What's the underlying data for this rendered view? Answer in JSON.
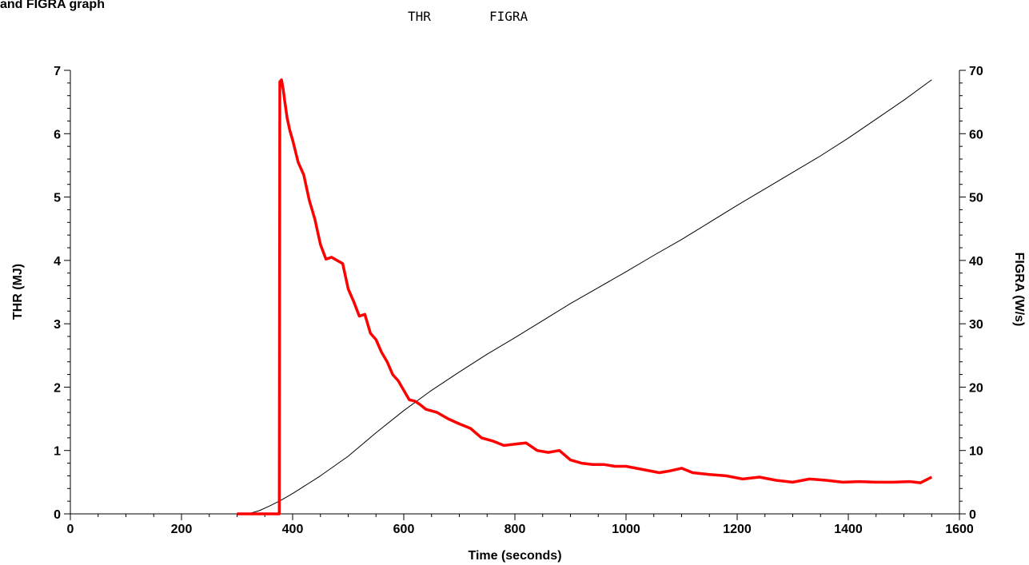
{
  "chart_data": {
    "type": "line",
    "title": "and FIGRA graph",
    "xlabel": "Time (seconds)",
    "ylabel_left": "THR (MJ)",
    "ylabel_right": "FIGRA (W/s)",
    "xlim": [
      0,
      1600
    ],
    "ylim_left": [
      0,
      7
    ],
    "ylim_right": [
      0,
      70
    ],
    "x_ticks": [
      "0",
      "200",
      "400",
      "600",
      "800",
      "1000",
      "1200",
      "1400",
      "1600"
    ],
    "y_left_ticks": [
      "0",
      "1",
      "2",
      "3",
      "4",
      "5",
      "6",
      "7"
    ],
    "y_right_ticks": [
      "0",
      "10",
      "20",
      "30",
      "40",
      "50",
      "60",
      "70"
    ],
    "grid": false,
    "legend": {
      "placement": "top-center",
      "entries": [
        "THR",
        "FIGRA"
      ]
    },
    "colors": {
      "THR": "#000000",
      "FIGRA": "#ff0000"
    },
    "series": [
      {
        "name": "THR",
        "axis": "left",
        "x": [
          300,
          320,
          340,
          360,
          380,
          400,
          450,
          500,
          550,
          600,
          650,
          700,
          750,
          800,
          850,
          900,
          950,
          1000,
          1050,
          1100,
          1150,
          1200,
          1250,
          1300,
          1350,
          1400,
          1450,
          1500,
          1550
        ],
        "y": [
          0,
          0,
          0.05,
          0.13,
          0.22,
          0.32,
          0.6,
          0.91,
          1.28,
          1.63,
          1.95,
          2.24,
          2.52,
          2.78,
          3.05,
          3.32,
          3.57,
          3.82,
          4.08,
          4.33,
          4.6,
          4.87,
          5.13,
          5.39,
          5.65,
          5.93,
          6.23,
          6.53,
          6.85
        ]
      },
      {
        "name": "FIGRA",
        "axis": "right",
        "x": [
          300,
          376,
          377,
          380,
          383,
          386,
          390,
          395,
          400,
          410,
          420,
          430,
          440,
          450,
          460,
          470,
          480,
          490,
          500,
          510,
          520,
          530,
          540,
          550,
          560,
          570,
          580,
          590,
          600,
          610,
          620,
          630,
          640,
          660,
          680,
          700,
          720,
          740,
          760,
          780,
          800,
          820,
          840,
          860,
          880,
          900,
          920,
          940,
          960,
          980,
          1000,
          1030,
          1060,
          1080,
          1100,
          1120,
          1150,
          1180,
          1210,
          1240,
          1270,
          1300,
          1330,
          1360,
          1390,
          1420,
          1450,
          1480,
          1510,
          1530,
          1550
        ],
        "y": [
          0,
          0,
          68.2,
          68.5,
          67.0,
          65.0,
          62.5,
          60.5,
          59.0,
          55.5,
          53.5,
          49.5,
          46.5,
          42.5,
          40.2,
          40.5,
          40.0,
          39.5,
          35.5,
          33.5,
          31.2,
          31.5,
          28.5,
          27.5,
          25.5,
          24.0,
          22.0,
          21.0,
          19.5,
          18.0,
          17.8,
          17.2,
          16.5,
          16.0,
          15.0,
          14.2,
          13.5,
          12.0,
          11.5,
          10.8,
          11.0,
          11.2,
          10.0,
          9.7,
          10.0,
          8.5,
          8.0,
          7.8,
          7.8,
          7.5,
          7.5,
          7.0,
          6.5,
          6.8,
          7.2,
          6.5,
          6.2,
          6.0,
          5.5,
          5.8,
          5.3,
          5.0,
          5.5,
          5.3,
          5.0,
          5.1,
          5.0,
          5.0,
          5.1,
          4.9,
          5.8
        ]
      }
    ]
  }
}
